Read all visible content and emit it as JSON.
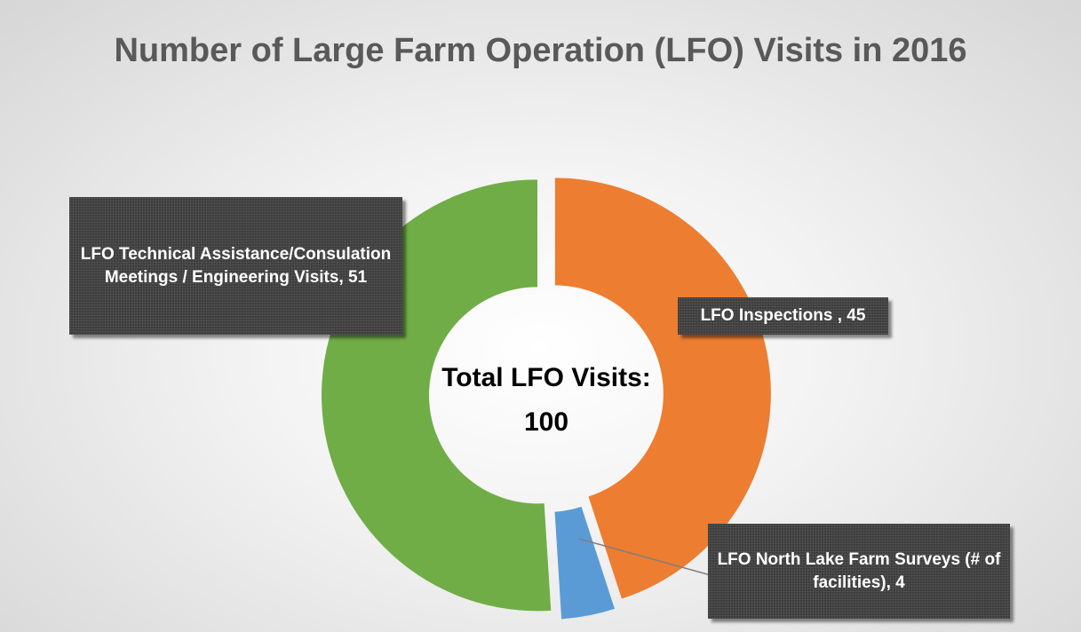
{
  "chart_data": {
    "type": "donut",
    "title": "Number of Large Farm Operation (LFO) Visits in 2016",
    "values": [
      45,
      4,
      51
    ],
    "value_labels": [
      "LFO Inspections , 45",
      "LFO North Lake Farm Surveys (# of facilities), 4",
      "LFO Technical Assistance/Consulation Meetings / Engineering Visits, 51"
    ],
    "colors": [
      "#ED7D31",
      "#5B9BD5",
      "#70AD47"
    ],
    "center_annotation": {
      "text": "Total LFO Visits:",
      "value": 100
    }
  }
}
